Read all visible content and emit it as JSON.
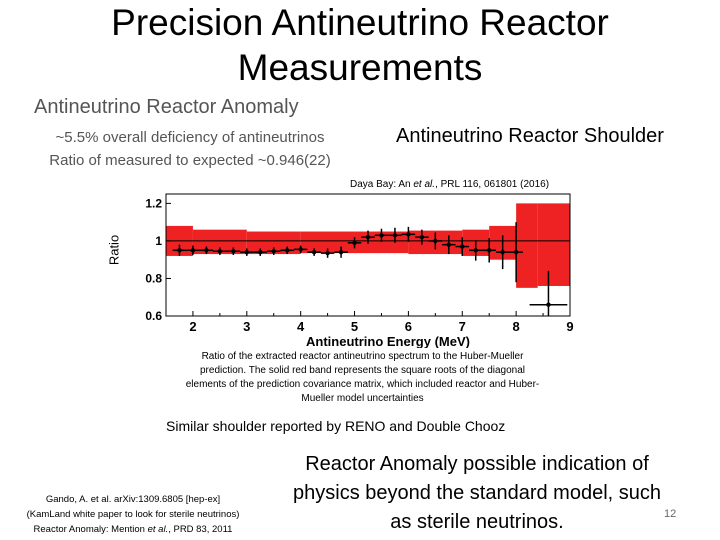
{
  "title": "Precision Antineutrino Reactor Measurements",
  "anomaly": {
    "heading": "Antineutrino Reactor Anomaly",
    "line1": "~5.5% overall deficiency of antineutrinos",
    "line2": "Ratio of measured to expected ~0.946(22)"
  },
  "shoulder_heading": "Antineutrino Reactor Shoulder",
  "citation": {
    "prefix": "Daya Bay: An ",
    "etal": "et al.",
    "suffix": ", PRL 116, 061801 (2016)"
  },
  "caption": "Ratio of the extracted reactor antineutrino spectrum to the Huber-Mueller prediction. The solid red band represents the square roots of the diagonal elements of the prediction covariance matrix, which included reactor and Huber-Mueller model uncertainties",
  "similar": "Similar shoulder reported by RENO and Double Chooz",
  "refs": {
    "line1": "Gando, A. et al. arXiv:1309.6805 [hep-ex]",
    "line2": "(KamLand white paper to look for sterile neutrinos)",
    "line3_prefix": "Reactor Anomaly: Mention ",
    "line3_etal": "et al.",
    "line3_suffix": ", PRD 83, 2011"
  },
  "conclusion": "Reactor Anomaly possible indication of physics beyond the standard model, such as sterile neutrinos.",
  "page_number": "12",
  "chart_data": {
    "type": "scatter",
    "xlabel": "Antineutrino Energy (MeV)",
    "ylabel": "Ratio",
    "xlim": [
      1.5,
      9.0
    ],
    "ylim": [
      0.6,
      1.25
    ],
    "xticks": [
      2,
      3,
      4,
      5,
      6,
      7,
      8,
      9
    ],
    "yticks": [
      0.6,
      0.8,
      1.0,
      1.2
    ],
    "band_color": "#ee2222",
    "band": [
      {
        "x0": 1.5,
        "x1": 2.0,
        "lo": 0.92,
        "hi": 1.08
      },
      {
        "x0": 2.0,
        "x1": 3.0,
        "lo": 0.93,
        "hi": 1.06
      },
      {
        "x0": 3.0,
        "x1": 4.0,
        "lo": 0.93,
        "hi": 1.05
      },
      {
        "x0": 4.0,
        "x1": 5.0,
        "lo": 0.935,
        "hi": 1.05
      },
      {
        "x0": 5.0,
        "x1": 6.0,
        "lo": 0.935,
        "hi": 1.05
      },
      {
        "x0": 6.0,
        "x1": 7.0,
        "lo": 0.93,
        "hi": 1.055
      },
      {
        "x0": 7.0,
        "x1": 7.5,
        "lo": 0.92,
        "hi": 1.06
      },
      {
        "x0": 7.5,
        "x1": 8.0,
        "lo": 0.9,
        "hi": 1.08
      },
      {
        "x0": 8.0,
        "x1": 8.4,
        "lo": 0.75,
        "hi": 1.2
      },
      {
        "x0": 8.4,
        "x1": 9.0,
        "lo": 0.76,
        "hi": 1.2
      }
    ],
    "points": [
      {
        "x": 1.75,
        "y": 0.95,
        "xerr": 0.125,
        "yerr": 0.03
      },
      {
        "x": 2.0,
        "y": 0.95,
        "xerr": 0.125,
        "yerr": 0.025
      },
      {
        "x": 2.25,
        "y": 0.95,
        "xerr": 0.125,
        "yerr": 0.02
      },
      {
        "x": 2.5,
        "y": 0.945,
        "xerr": 0.125,
        "yerr": 0.02
      },
      {
        "x": 2.75,
        "y": 0.945,
        "xerr": 0.125,
        "yerr": 0.02
      },
      {
        "x": 3.0,
        "y": 0.94,
        "xerr": 0.125,
        "yerr": 0.02
      },
      {
        "x": 3.25,
        "y": 0.94,
        "xerr": 0.125,
        "yerr": 0.02
      },
      {
        "x": 3.5,
        "y": 0.945,
        "xerr": 0.125,
        "yerr": 0.02
      },
      {
        "x": 3.75,
        "y": 0.95,
        "xerr": 0.125,
        "yerr": 0.02
      },
      {
        "x": 4.0,
        "y": 0.955,
        "xerr": 0.125,
        "yerr": 0.02
      },
      {
        "x": 4.25,
        "y": 0.94,
        "xerr": 0.125,
        "yerr": 0.02
      },
      {
        "x": 4.5,
        "y": 0.935,
        "xerr": 0.125,
        "yerr": 0.025
      },
      {
        "x": 4.75,
        "y": 0.94,
        "xerr": 0.125,
        "yerr": 0.03
      },
      {
        "x": 5.0,
        "y": 0.99,
        "xerr": 0.125,
        "yerr": 0.03
      },
      {
        "x": 5.25,
        "y": 1.02,
        "xerr": 0.125,
        "yerr": 0.035
      },
      {
        "x": 5.5,
        "y": 1.03,
        "xerr": 0.125,
        "yerr": 0.035
      },
      {
        "x": 5.75,
        "y": 1.03,
        "xerr": 0.125,
        "yerr": 0.04
      },
      {
        "x": 6.0,
        "y": 1.035,
        "xerr": 0.125,
        "yerr": 0.04
      },
      {
        "x": 6.25,
        "y": 1.02,
        "xerr": 0.125,
        "yerr": 0.04
      },
      {
        "x": 6.5,
        "y": 1.0,
        "xerr": 0.125,
        "yerr": 0.045
      },
      {
        "x": 6.75,
        "y": 0.98,
        "xerr": 0.125,
        "yerr": 0.05
      },
      {
        "x": 7.0,
        "y": 0.97,
        "xerr": 0.125,
        "yerr": 0.05
      },
      {
        "x": 7.25,
        "y": 0.95,
        "xerr": 0.125,
        "yerr": 0.055
      },
      {
        "x": 7.5,
        "y": 0.95,
        "xerr": 0.125,
        "yerr": 0.065
      },
      {
        "x": 7.75,
        "y": 0.94,
        "xerr": 0.125,
        "yerr": 0.09
      },
      {
        "x": 8.0,
        "y": 0.94,
        "xerr": 0.125,
        "yerr": 0.16
      },
      {
        "x": 8.6,
        "y": 0.66,
        "xerr": 0.35,
        "yerr": 0.18
      }
    ]
  }
}
